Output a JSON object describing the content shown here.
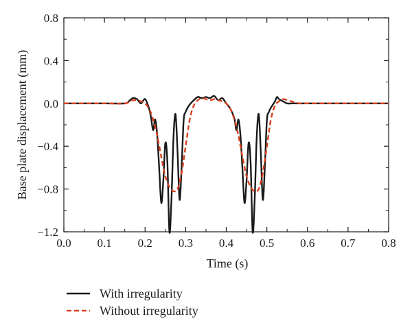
{
  "chart_data": {
    "type": "line",
    "title": "",
    "xlabel": "Time (s)",
    "ylabel": "Base plate displacement (mm)",
    "xlim": [
      0.0,
      0.8
    ],
    "ylim": [
      -1.2,
      0.8
    ],
    "xticks": [
      0.0,
      0.1,
      0.2,
      0.3,
      0.4,
      0.5,
      0.6,
      0.7,
      0.8
    ],
    "xtick_labels": [
      "0.0",
      "0.1",
      "0.2",
      "0.3",
      "0.4",
      "0.5",
      "0.6",
      "0.7",
      "0.8"
    ],
    "yticks": [
      0.8,
      0.4,
      0.0,
      -0.4,
      -0.8,
      -1.2
    ],
    "ytick_labels": [
      "0.8",
      "0.4",
      "0.0",
      "−0.4",
      "−0.8",
      "−1.2"
    ],
    "grid": false,
    "legend_position": "below",
    "series": [
      {
        "name": "With irregularity",
        "color": "#1a1a1a",
        "dash": "solid",
        "x": [
          0.0,
          0.1,
          0.15,
          0.16,
          0.17,
          0.18,
          0.19,
          0.2,
          0.21,
          0.215,
          0.22,
          0.225,
          0.23,
          0.235,
          0.24,
          0.245,
          0.25,
          0.255,
          0.26,
          0.265,
          0.27,
          0.275,
          0.28,
          0.285,
          0.29,
          0.295,
          0.3,
          0.305,
          0.31,
          0.32,
          0.33,
          0.34,
          0.35,
          0.36,
          0.37,
          0.38,
          0.39,
          0.4,
          0.41,
          0.42,
          0.425,
          0.43,
          0.435,
          0.44,
          0.445,
          0.45,
          0.455,
          0.46,
          0.465,
          0.47,
          0.475,
          0.48,
          0.485,
          0.49,
          0.495,
          0.5,
          0.505,
          0.51,
          0.515,
          0.52,
          0.525,
          0.53,
          0.54,
          0.55,
          0.56,
          0.565,
          0.57,
          0.58,
          0.6,
          0.65,
          0.7,
          0.8
        ],
        "y": [
          0.0,
          0.0,
          0.0,
          0.02,
          0.05,
          0.04,
          0.0,
          0.04,
          -0.05,
          -0.14,
          -0.25,
          -0.15,
          -0.3,
          -0.62,
          -0.93,
          -0.72,
          -0.37,
          -0.55,
          -1.2,
          -0.9,
          -0.32,
          -0.1,
          -0.45,
          -0.9,
          -0.6,
          -0.16,
          -0.08,
          -0.04,
          -0.01,
          0.03,
          0.06,
          0.05,
          0.06,
          0.05,
          0.07,
          0.03,
          0.05,
          0.0,
          -0.05,
          -0.14,
          -0.25,
          -0.15,
          -0.3,
          -0.62,
          -0.93,
          -0.72,
          -0.37,
          -0.55,
          -1.2,
          -0.9,
          -0.32,
          -0.1,
          -0.45,
          -0.9,
          -0.6,
          -0.16,
          -0.08,
          -0.04,
          -0.01,
          0.02,
          0.06,
          0.04,
          0.02,
          0.0,
          0.0,
          0.0,
          0.0,
          0.0,
          0.0,
          0.0,
          0.0,
          0.0
        ]
      },
      {
        "name": "Without irregularity",
        "color": "#d9411e",
        "dash": "dashed",
        "x": [
          0.0,
          0.1,
          0.15,
          0.17,
          0.19,
          0.2,
          0.21,
          0.22,
          0.23,
          0.24,
          0.25,
          0.26,
          0.27,
          0.28,
          0.29,
          0.3,
          0.31,
          0.32,
          0.33,
          0.34,
          0.35,
          0.36,
          0.37,
          0.38,
          0.39,
          0.4,
          0.41,
          0.42,
          0.43,
          0.44,
          0.45,
          0.46,
          0.47,
          0.48,
          0.49,
          0.5,
          0.51,
          0.52,
          0.53,
          0.54,
          0.56,
          0.58,
          0.6,
          0.7,
          0.8
        ],
        "y": [
          0.0,
          0.0,
          0.0,
          0.03,
          0.02,
          0.0,
          -0.05,
          -0.15,
          -0.3,
          -0.5,
          -0.68,
          -0.78,
          -0.82,
          -0.8,
          -0.65,
          -0.4,
          -0.15,
          -0.02,
          0.03,
          0.05,
          0.04,
          0.03,
          0.04,
          0.03,
          0.02,
          0.0,
          -0.05,
          -0.15,
          -0.3,
          -0.5,
          -0.68,
          -0.78,
          -0.82,
          -0.8,
          -0.65,
          -0.4,
          -0.15,
          -0.02,
          0.02,
          0.04,
          0.02,
          0.0,
          0.0,
          0.0,
          0.0
        ]
      }
    ]
  }
}
